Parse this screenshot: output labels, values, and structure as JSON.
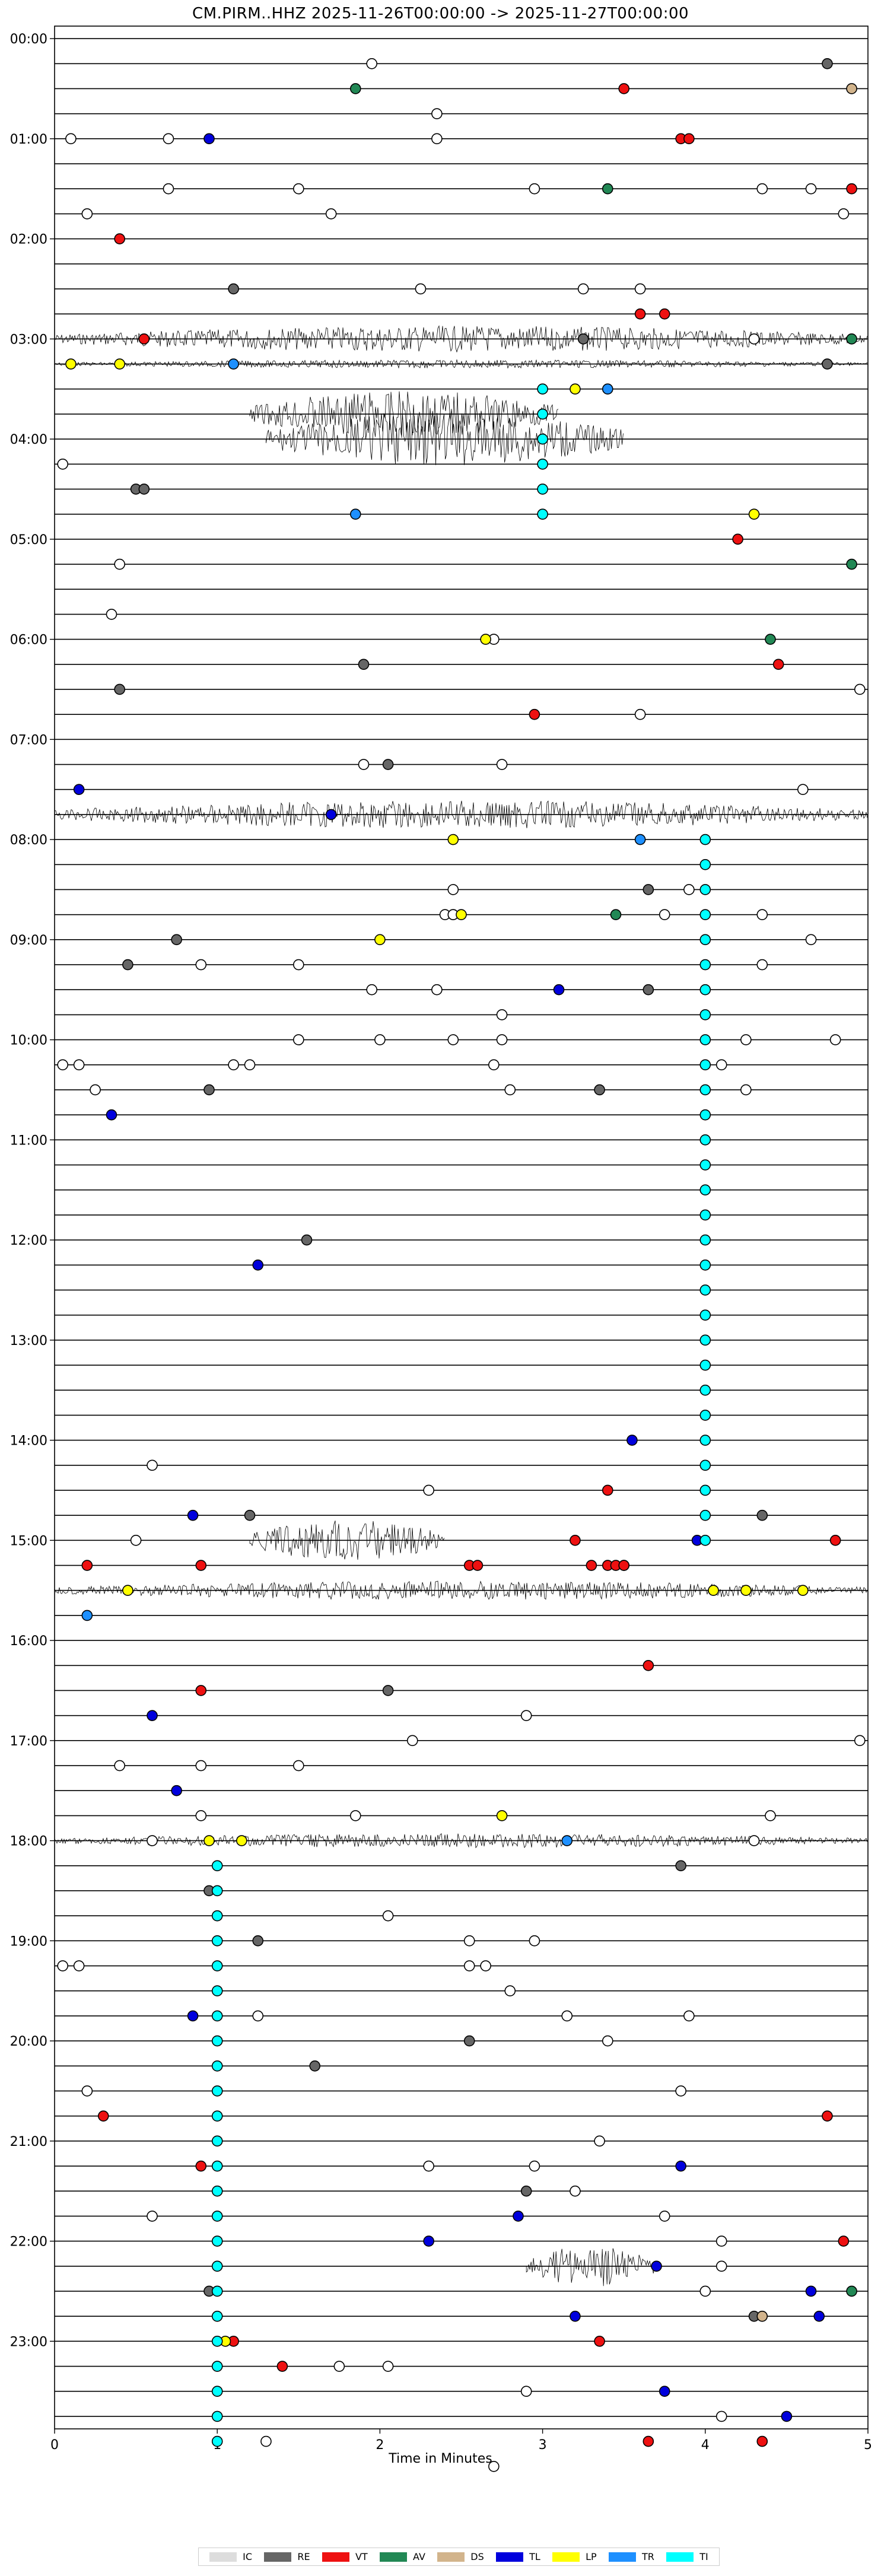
{
  "chart_data": {
    "type": "scatter",
    "title": "CM.PIRM..HHZ  2025-11-26T00:00:00 -> 2025-11-27T00:00:00",
    "xlabel": "Time in Minutes",
    "ylabel": "",
    "xlim": [
      0,
      5
    ],
    "x_ticks": [
      "0",
      "1",
      "2",
      "3",
      "4",
      "5"
    ],
    "rows_per_hour": 4,
    "y_tick_labels": [
      "00:00",
      "01:00",
      "02:00",
      "03:00",
      "04:00",
      "05:00",
      "06:00",
      "07:00",
      "08:00",
      "09:00",
      "10:00",
      "11:00",
      "12:00",
      "13:00",
      "14:00",
      "15:00",
      "16:00",
      "17:00",
      "18:00",
      "19:00",
      "20:00",
      "21:00",
      "22:00",
      "23:00"
    ],
    "legend_position": "bottom-center",
    "classes": [
      {
        "name": "IC",
        "color": "#dddddd"
      },
      {
        "name": "RE",
        "color": "#666666"
      },
      {
        "name": "VT",
        "color": "#ee1111"
      },
      {
        "name": "AV",
        "color": "#228855"
      },
      {
        "name": "DS",
        "color": "#d2b48c"
      },
      {
        "name": "TL",
        "color": "#0000dd"
      },
      {
        "name": "LP",
        "color": "#ffff00"
      },
      {
        "name": "TR",
        "color": "#1e90ff"
      },
      {
        "name": "TI",
        "color": "#00ffff"
      }
    ],
    "noisy_rows": [
      {
        "row": 12,
        "x0": 0.0,
        "x1": 5.0,
        "amp": 22
      },
      {
        "row": 13,
        "x0": 0.0,
        "x1": 5.0,
        "amp": 7
      },
      {
        "row": 15,
        "x0": 1.2,
        "x1": 3.1,
        "amp": 40
      },
      {
        "row": 16,
        "x0": 1.3,
        "x1": 3.5,
        "amp": 45
      },
      {
        "row": 31,
        "x0": 0.0,
        "x1": 5.0,
        "amp": 24
      },
      {
        "row": 62,
        "x0": 0.0,
        "x1": 5.0,
        "amp": 16
      },
      {
        "row": 60,
        "x0": 1.2,
        "x1": 2.4,
        "amp": 35
      },
      {
        "row": 72,
        "x0": 0.0,
        "x1": 5.0,
        "amp": 12
      },
      {
        "row": 89,
        "x0": 2.9,
        "x1": 3.7,
        "amp": 35
      }
    ],
    "series": [
      {
        "name": "IC",
        "points": [
          [
            1.95,
            1
          ],
          [
            2.35,
            3
          ],
          [
            0.1,
            4
          ],
          [
            0.7,
            4
          ],
          [
            2.35,
            4
          ],
          [
            0.7,
            6
          ],
          [
            1.5,
            6
          ],
          [
            2.95,
            6
          ],
          [
            4.35,
            6
          ],
          [
            4.65,
            6
          ],
          [
            0.2,
            7
          ],
          [
            1.7,
            7
          ],
          [
            4.85,
            7
          ],
          [
            2.25,
            10
          ],
          [
            3.25,
            10
          ],
          [
            3.6,
            10
          ],
          [
            4.3,
            12
          ],
          [
            0.05,
            17
          ],
          [
            0.4,
            21
          ],
          [
            0.35,
            23
          ],
          [
            2.7,
            24
          ],
          [
            3.6,
            27
          ],
          [
            4.95,
            26
          ],
          [
            2.75,
            29
          ],
          [
            1.9,
            29
          ],
          [
            4.6,
            30
          ],
          [
            2.3,
            58
          ],
          [
            2.4,
            35
          ],
          [
            2.45,
            35
          ],
          [
            2.45,
            34
          ],
          [
            2.45,
            35
          ],
          [
            3.75,
            35
          ],
          [
            3.9,
            34
          ],
          [
            4.35,
            35
          ],
          [
            4.65,
            36
          ],
          [
            0.9,
            37
          ],
          [
            1.5,
            37
          ],
          [
            1.95,
            38
          ],
          [
            2.35,
            38
          ],
          [
            4.35,
            37
          ],
          [
            1.5,
            40
          ],
          [
            2.0,
            40
          ],
          [
            2.45,
            40
          ],
          [
            2.75,
            39
          ],
          [
            4.25,
            40
          ],
          [
            4.8,
            40
          ],
          [
            1.1,
            41
          ],
          [
            1.2,
            41
          ],
          [
            2.7,
            41
          ],
          [
            2.75,
            40
          ],
          [
            0.05,
            41
          ],
          [
            0.15,
            41
          ],
          [
            0.25,
            42
          ],
          [
            2.8,
            42
          ],
          [
            4.1,
            41
          ],
          [
            4.25,
            42
          ],
          [
            0.6,
            57
          ],
          [
            0.5,
            60
          ],
          [
            2.2,
            68
          ],
          [
            2.9,
            67
          ],
          [
            4.95,
            68
          ],
          [
            0.4,
            69
          ],
          [
            0.9,
            69
          ],
          [
            1.5,
            69
          ],
          [
            1.85,
            71
          ],
          [
            0.6,
            72
          ],
          [
            0.9,
            71
          ],
          [
            4.4,
            71
          ],
          [
            4.3,
            72
          ],
          [
            2.05,
            75
          ],
          [
            2.55,
            76
          ],
          [
            2.95,
            76
          ],
          [
            0.05,
            77
          ],
          [
            0.15,
            77
          ],
          [
            2.55,
            77
          ],
          [
            2.65,
            77
          ],
          [
            2.8,
            78
          ],
          [
            1.25,
            79
          ],
          [
            3.15,
            79
          ],
          [
            3.4,
            80
          ],
          [
            3.9,
            79
          ],
          [
            0.2,
            82
          ],
          [
            3.85,
            82
          ],
          [
            3.35,
            84
          ],
          [
            2.3,
            85
          ],
          [
            2.95,
            85
          ],
          [
            3.2,
            86
          ],
          [
            0.6,
            87
          ],
          [
            3.75,
            87
          ],
          [
            4.1,
            88
          ],
          [
            4.1,
            89
          ],
          [
            4.0,
            90
          ],
          [
            2.05,
            93
          ],
          [
            1.75,
            93
          ],
          [
            2.9,
            94
          ],
          [
            4.1,
            95
          ],
          [
            1.3,
            96
          ],
          [
            2.7,
            97
          ]
        ]
      },
      {
        "name": "RE",
        "points": [
          [
            4.75,
            1
          ],
          [
            1.1,
            10
          ],
          [
            4.75,
            13
          ],
          [
            3.25,
            12
          ],
          [
            0.5,
            18
          ],
          [
            0.55,
            18
          ],
          [
            1.9,
            25
          ],
          [
            0.4,
            26
          ],
          [
            2.05,
            29
          ],
          [
            3.65,
            34
          ],
          [
            0.75,
            36
          ],
          [
            0.45,
            37
          ],
          [
            3.65,
            38
          ],
          [
            0.95,
            42
          ],
          [
            3.35,
            42
          ],
          [
            1.55,
            48
          ],
          [
            1.2,
            59
          ],
          [
            4.35,
            59
          ],
          [
            2.05,
            66
          ],
          [
            3.85,
            73
          ],
          [
            0.95,
            74
          ],
          [
            1.25,
            76
          ],
          [
            2.55,
            80
          ],
          [
            1.6,
            81
          ],
          [
            2.9,
            86
          ],
          [
            0.95,
            90
          ],
          [
            4.3,
            91
          ]
        ]
      },
      {
        "name": "VT",
        "points": [
          [
            3.5,
            2
          ],
          [
            3.85,
            4
          ],
          [
            3.9,
            4
          ],
          [
            4.9,
            6
          ],
          [
            0.4,
            8
          ],
          [
            3.6,
            11
          ],
          [
            3.75,
            11
          ],
          [
            0.55,
            12
          ],
          [
            4.2,
            20
          ],
          [
            4.45,
            25
          ],
          [
            2.95,
            27
          ],
          [
            0.2,
            61
          ],
          [
            0.9,
            61
          ],
          [
            2.55,
            61
          ],
          [
            2.6,
            61
          ],
          [
            3.2,
            60
          ],
          [
            3.3,
            61
          ],
          [
            3.4,
            61
          ],
          [
            3.45,
            61
          ],
          [
            3.5,
            61
          ],
          [
            3.4,
            58
          ],
          [
            3.5,
            61
          ],
          [
            3.65,
            65
          ],
          [
            0.9,
            66
          ],
          [
            4.8,
            60
          ],
          [
            0.3,
            83
          ],
          [
            4.75,
            83
          ],
          [
            0.9,
            85
          ],
          [
            4.85,
            88
          ],
          [
            1.1,
            92
          ],
          [
            1.4,
            93
          ],
          [
            3.35,
            92
          ],
          [
            3.65,
            96
          ],
          [
            4.35,
            96
          ]
        ]
      },
      {
        "name": "AV",
        "points": [
          [
            1.85,
            2
          ],
          [
            3.4,
            6
          ],
          [
            4.9,
            12
          ],
          [
            3.45,
            35
          ],
          [
            4.9,
            21
          ],
          [
            4.4,
            24
          ],
          [
            4.9,
            90
          ]
        ]
      },
      {
        "name": "DS",
        "points": [
          [
            4.9,
            2
          ],
          [
            4.35,
            91
          ]
        ]
      },
      {
        "name": "TL",
        "points": [
          [
            0.95,
            4
          ],
          [
            0.15,
            30
          ],
          [
            1.7,
            31
          ],
          [
            3.1,
            38
          ],
          [
            0.35,
            43
          ],
          [
            1.25,
            49
          ],
          [
            3.55,
            56
          ],
          [
            0.85,
            59
          ],
          [
            3.95,
            60
          ],
          [
            0.6,
            67
          ],
          [
            0.75,
            70
          ],
          [
            0.85,
            79
          ],
          [
            3.85,
            85
          ],
          [
            2.85,
            87
          ],
          [
            2.3,
            88
          ],
          [
            3.7,
            89
          ],
          [
            3.2,
            91
          ],
          [
            4.65,
            90
          ],
          [
            4.7,
            91
          ],
          [
            3.75,
            94
          ],
          [
            4.5,
            95
          ]
        ]
      },
      {
        "name": "LP",
        "points": [
          [
            0.1,
            13
          ],
          [
            0.4,
            13
          ],
          [
            3.2,
            14
          ],
          [
            4.3,
            19
          ],
          [
            2.65,
            24
          ],
          [
            2.45,
            32
          ],
          [
            2.5,
            35
          ],
          [
            2.0,
            36
          ],
          [
            0.45,
            62
          ],
          [
            4.05,
            62
          ],
          [
            4.25,
            62
          ],
          [
            4.6,
            62
          ],
          [
            0.95,
            72
          ],
          [
            1.15,
            72
          ],
          [
            2.75,
            71
          ],
          [
            1.05,
            92
          ]
        ]
      },
      {
        "name": "TR",
        "points": [
          [
            1.1,
            13
          ],
          [
            1.85,
            19
          ],
          [
            3.4,
            14
          ],
          [
            3.6,
            32
          ],
          [
            0.2,
            63
          ],
          [
            3.15,
            72
          ]
        ]
      },
      {
        "name": "TI",
        "points": [
          [
            3.0,
            14
          ],
          [
            3.0,
            15
          ],
          [
            3.0,
            16
          ],
          [
            3.0,
            17
          ],
          [
            3.0,
            18
          ],
          [
            3.0,
            19
          ],
          [
            4.0,
            32
          ],
          [
            4.0,
            33
          ],
          [
            4.0,
            34
          ],
          [
            4.0,
            35
          ],
          [
            4.0,
            36
          ],
          [
            4.0,
            37
          ],
          [
            4.0,
            38
          ],
          [
            4.0,
            39
          ],
          [
            4.0,
            40
          ],
          [
            4.0,
            41
          ],
          [
            4.0,
            42
          ],
          [
            4.0,
            43
          ],
          [
            4.0,
            44
          ],
          [
            4.0,
            45
          ],
          [
            4.0,
            46
          ],
          [
            4.0,
            47
          ],
          [
            4.0,
            48
          ],
          [
            4.0,
            49
          ],
          [
            4.0,
            50
          ],
          [
            4.0,
            51
          ],
          [
            4.0,
            52
          ],
          [
            4.0,
            53
          ],
          [
            4.0,
            54
          ],
          [
            4.0,
            55
          ],
          [
            4.0,
            56
          ],
          [
            4.0,
            57
          ],
          [
            4.0,
            58
          ],
          [
            4.0,
            59
          ],
          [
            4.0,
            60
          ],
          [
            1.0,
            73
          ],
          [
            1.0,
            74
          ],
          [
            1.0,
            75
          ],
          [
            1.0,
            76
          ],
          [
            1.0,
            77
          ],
          [
            1.0,
            78
          ],
          [
            1.0,
            79
          ],
          [
            1.0,
            80
          ],
          [
            1.0,
            81
          ],
          [
            1.0,
            82
          ],
          [
            1.0,
            83
          ],
          [
            1.0,
            84
          ],
          [
            1.0,
            85
          ],
          [
            1.0,
            86
          ],
          [
            1.0,
            87
          ],
          [
            1.0,
            88
          ],
          [
            1.0,
            89
          ],
          [
            1.0,
            90
          ],
          [
            1.0,
            91
          ],
          [
            1.0,
            92
          ],
          [
            1.0,
            93
          ],
          [
            1.0,
            94
          ],
          [
            1.0,
            95
          ],
          [
            1.0,
            96
          ]
        ]
      }
    ]
  }
}
